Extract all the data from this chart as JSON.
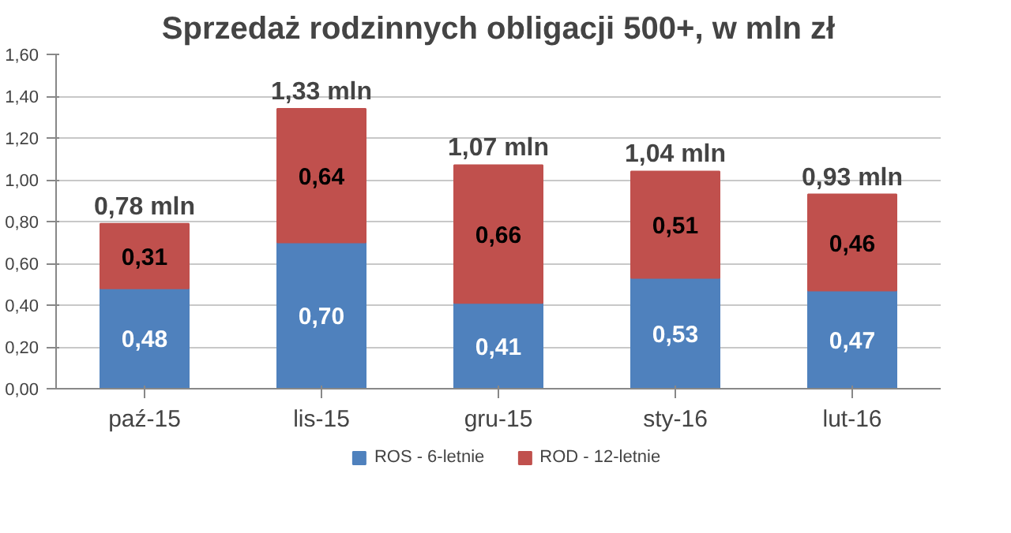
{
  "chart_data": {
    "type": "bar",
    "title": "Sprzedaż rodzinnych obligacji 500+, w mln zł",
    "categories": [
      "paź-15",
      "lis-15",
      "gru-15",
      "sty-16",
      "lut-16"
    ],
    "series": [
      {
        "name": "ROS - 6-letnie",
        "color": "#4f81bd",
        "values": [
          0.48,
          0.7,
          0.41,
          0.53,
          0.47
        ],
        "value_labels": [
          "0,48",
          "0,70",
          "0,41",
          "0,53",
          "0,47"
        ]
      },
      {
        "name": "ROD - 12-letnie",
        "color": "#c0504d",
        "values": [
          0.31,
          0.64,
          0.66,
          0.51,
          0.46
        ],
        "value_labels": [
          "0,31",
          "0,64",
          "0,66",
          "0,51",
          "0,46"
        ]
      }
    ],
    "stacked": true,
    "totals": [
      "0,78 mln",
      "1,33 mln",
      "1,07 mln",
      "1,04 mln",
      "0,93 mln"
    ],
    "ylim": [
      0,
      1.6
    ],
    "yticks": [
      {
        "value": 0,
        "label": "0,00"
      },
      {
        "value": 0.2,
        "label": "0,20"
      },
      {
        "value": 0.4,
        "label": "0,40"
      },
      {
        "value": 0.6,
        "label": "0,60"
      },
      {
        "value": 0.8,
        "label": "0,80"
      },
      {
        "value": 1.0,
        "label": "1,00"
      },
      {
        "value": 1.2,
        "label": "1,20"
      },
      {
        "value": 1.4,
        "label": "1,40"
      },
      {
        "value": 1.6,
        "label": "1,60"
      }
    ],
    "grid": "y",
    "legend": "bottom"
  }
}
